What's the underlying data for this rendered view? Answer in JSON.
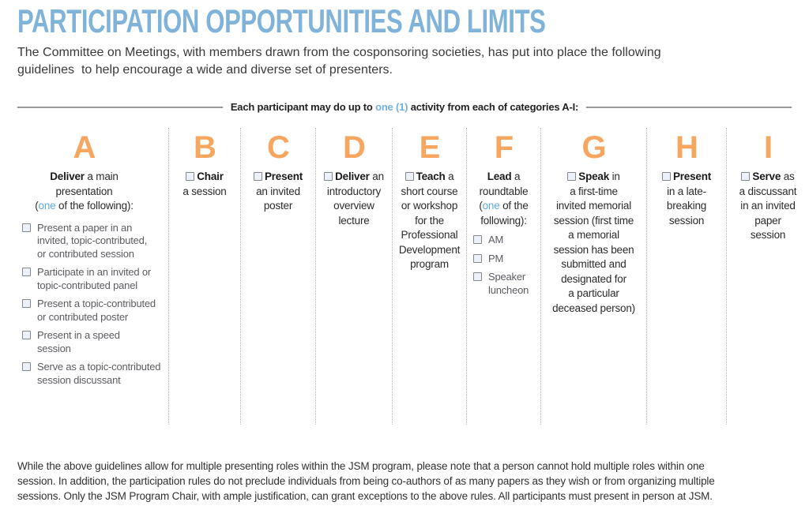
{
  "title": "PARTICIPATION OPPORTUNITIES AND LIMITS",
  "intro": "The Committee on Meetings, with members drawn from the cosponsoring societies, has put into place the following guidelines  to help encourage a wide and diverse set of presenters.",
  "divider": {
    "pre": "Each participant may do up to ",
    "highlight": "one (1)",
    "post": " activity from each of categories A-I:"
  },
  "footer": "While the above guidelines allow for multiple presenting roles within the JSM program, please note that a person cannot hold multiple roles within one session. In addition, the participation rules do not preclude individuals from being co-authors of as many papers as they wish or from organizing multiple sessions. Only the JSM Program Chair, with ample justification, can grant exceptions to the above rules. All participants must present in person at JSM.",
  "colors": {
    "title_blue": "#7fb3da",
    "accent_blue": "#62aadd",
    "letter_orange": "#f7a660",
    "header_dark": "#2b2b2d",
    "item_gray": "#5a5c61",
    "checkbox_fill": "#edf1f9",
    "checkbox_border": "#84878e"
  },
  "columns": [
    {
      "letter": "A",
      "header": {
        "checkbox": false,
        "lines": [
          [
            {
              "t": "Deliver",
              "s": "b"
            },
            {
              "t": " a main",
              "s": "n"
            }
          ],
          [
            {
              "t": "presentation",
              "s": "n"
            }
          ],
          [
            {
              "t": "(",
              "s": "n"
            },
            {
              "t": "one",
              "s": "a"
            },
            {
              "t": " of the following):",
              "s": "n"
            }
          ]
        ]
      },
      "items": [
        [
          "Present a paper in an",
          "invited, topic-contributed,",
          "or contributed session"
        ],
        [
          "Participate in an invited or",
          "topic-contributed panel"
        ],
        [
          "Present a topic-contributed",
          "or contributed poster"
        ],
        [
          "Present in a speed",
          "session"
        ],
        [
          "Serve as a topic-contributed",
          "session discussant"
        ]
      ]
    },
    {
      "letter": "B",
      "header": {
        "checkbox": true,
        "lines": [
          [
            {
              "t": "Chair",
              "s": "b"
            }
          ],
          [
            {
              "t": "a session",
              "s": "n"
            }
          ]
        ]
      },
      "items": []
    },
    {
      "letter": "C",
      "header": {
        "checkbox": true,
        "lines": [
          [
            {
              "t": "Present",
              "s": "b"
            }
          ],
          [
            {
              "t": "an invited",
              "s": "n"
            }
          ],
          [
            {
              "t": "poster",
              "s": "n"
            }
          ]
        ]
      },
      "items": []
    },
    {
      "letter": "D",
      "header": {
        "checkbox": true,
        "lines": [
          [
            {
              "t": "Deliver",
              "s": "b"
            },
            {
              "t": " an",
              "s": "n"
            }
          ],
          [
            {
              "t": "introductory",
              "s": "n"
            }
          ],
          [
            {
              "t": "overview",
              "s": "n"
            }
          ],
          [
            {
              "t": "lecture",
              "s": "n"
            }
          ]
        ]
      },
      "items": []
    },
    {
      "letter": "E",
      "header": {
        "checkbox": true,
        "lines": [
          [
            {
              "t": "Teach",
              "s": "b"
            },
            {
              "t": " a",
              "s": "n"
            }
          ],
          [
            {
              "t": "short course",
              "s": "n"
            }
          ],
          [
            {
              "t": "or workshop",
              "s": "n"
            }
          ],
          [
            {
              "t": "for the",
              "s": "n"
            }
          ],
          [
            {
              "t": "Professional",
              "s": "n"
            }
          ],
          [
            {
              "t": "Development",
              "s": "n"
            }
          ],
          [
            {
              "t": "program",
              "s": "n"
            }
          ]
        ]
      },
      "items": []
    },
    {
      "letter": "F",
      "header": {
        "checkbox": false,
        "lines": [
          [
            {
              "t": "Lead",
              "s": "b"
            },
            {
              "t": " a",
              "s": "n"
            }
          ],
          [
            {
              "t": "roundtable",
              "s": "n"
            }
          ],
          [
            {
              "t": "(",
              "s": "n"
            },
            {
              "t": "one",
              "s": "a"
            },
            {
              "t": " of the",
              "s": "n"
            }
          ],
          [
            {
              "t": "following):",
              "s": "n"
            }
          ]
        ]
      },
      "items": [
        [
          "AM"
        ],
        [
          "PM"
        ],
        [
          "Speaker",
          "luncheon"
        ]
      ]
    },
    {
      "letter": "G",
      "header": {
        "checkbox": true,
        "lines": [
          [
            {
              "t": "Speak",
              "s": "b"
            },
            {
              "t": " in",
              "s": "n"
            }
          ],
          [
            {
              "t": "a first-time",
              "s": "n"
            }
          ],
          [
            {
              "t": "invited memorial",
              "s": "n"
            }
          ],
          [
            {
              "t": "session (first time",
              "s": "n"
            }
          ],
          [
            {
              "t": "a memorial",
              "s": "n"
            }
          ],
          [
            {
              "t": "session has been",
              "s": "n"
            }
          ],
          [
            {
              "t": "submitted and",
              "s": "n"
            }
          ],
          [
            {
              "t": "designated for",
              "s": "n"
            }
          ],
          [
            {
              "t": "a particular",
              "s": "n"
            }
          ],
          [
            {
              "t": "deceased person)",
              "s": "n"
            }
          ]
        ]
      },
      "items": []
    },
    {
      "letter": "H",
      "header": {
        "checkbox": true,
        "lines": [
          [
            {
              "t": "Present",
              "s": "b"
            }
          ],
          [
            {
              "t": "in a late-",
              "s": "n"
            }
          ],
          [
            {
              "t": "breaking",
              "s": "n"
            }
          ],
          [
            {
              "t": "session",
              "s": "n"
            }
          ]
        ]
      },
      "items": []
    },
    {
      "letter": "I",
      "header": {
        "checkbox": true,
        "lines": [
          [
            {
              "t": "Serve",
              "s": "b"
            },
            {
              "t": " as",
              "s": "n"
            }
          ],
          [
            {
              "t": "a discussant",
              "s": "n"
            }
          ],
          [
            {
              "t": "in an invited",
              "s": "n"
            }
          ],
          [
            {
              "t": "paper",
              "s": "n"
            }
          ],
          [
            {
              "t": "session",
              "s": "n"
            }
          ]
        ]
      },
      "items": []
    }
  ]
}
